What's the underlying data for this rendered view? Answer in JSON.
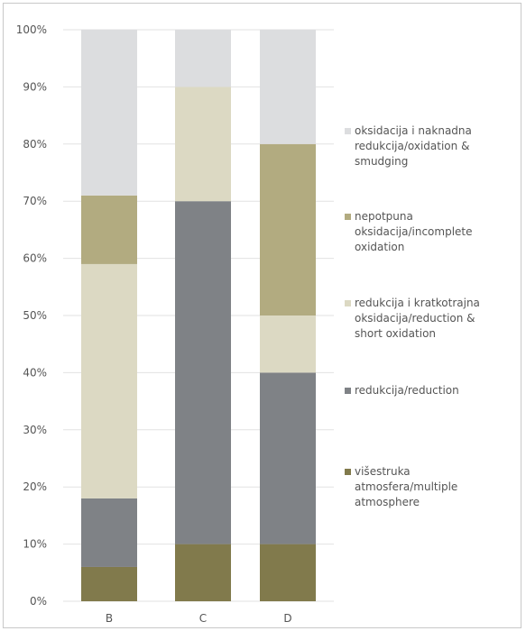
{
  "chart_data": {
    "type": "bar",
    "stacked": true,
    "percent": true,
    "categories": [
      "B",
      "C",
      "D"
    ],
    "ylim": [
      0,
      100
    ],
    "yticks": [
      "0%",
      "10%",
      "20%",
      "30%",
      "40%",
      "50%",
      "60%",
      "70%",
      "80%",
      "90%",
      "100%"
    ],
    "grid": true,
    "legend_position": "right",
    "series": [
      {
        "name": "višestruka atmosfera/multiple atmosphere",
        "color": "#817a4c",
        "values": [
          6,
          10,
          10
        ]
      },
      {
        "name": "redukcija/reduction",
        "color": "#7f8286",
        "values": [
          12,
          60,
          30
        ]
      },
      {
        "name": "redukcija i kratkotrajna oksidacija/reduction & short oxidation",
        "color": "#dcd9c3",
        "values": [
          41,
          20,
          10
        ]
      },
      {
        "name": "nepotpuna oksidacija/incomplete oxidation",
        "color": "#b2ab80",
        "values": [
          12,
          0,
          30
        ]
      },
      {
        "name": "oksidacija i naknadna redukcija/oxidation & smudging",
        "color": "#dcdddf",
        "values": [
          29,
          10,
          20
        ]
      }
    ]
  },
  "legend_lines": [
    [
      "oksidacija i naknadna",
      "redukcija/oxidation &",
      "smudging"
    ],
    [
      "nepotpuna",
      "oksidacija/incomplete",
      "oxidation"
    ],
    [
      "redukcija i kratkotrajna",
      "oksidacija/reduction &",
      "short oxidation"
    ],
    [
      "redukcija/reduction"
    ],
    [
      "višestruka",
      "atmosfera/multiple",
      "atmosphere"
    ]
  ]
}
